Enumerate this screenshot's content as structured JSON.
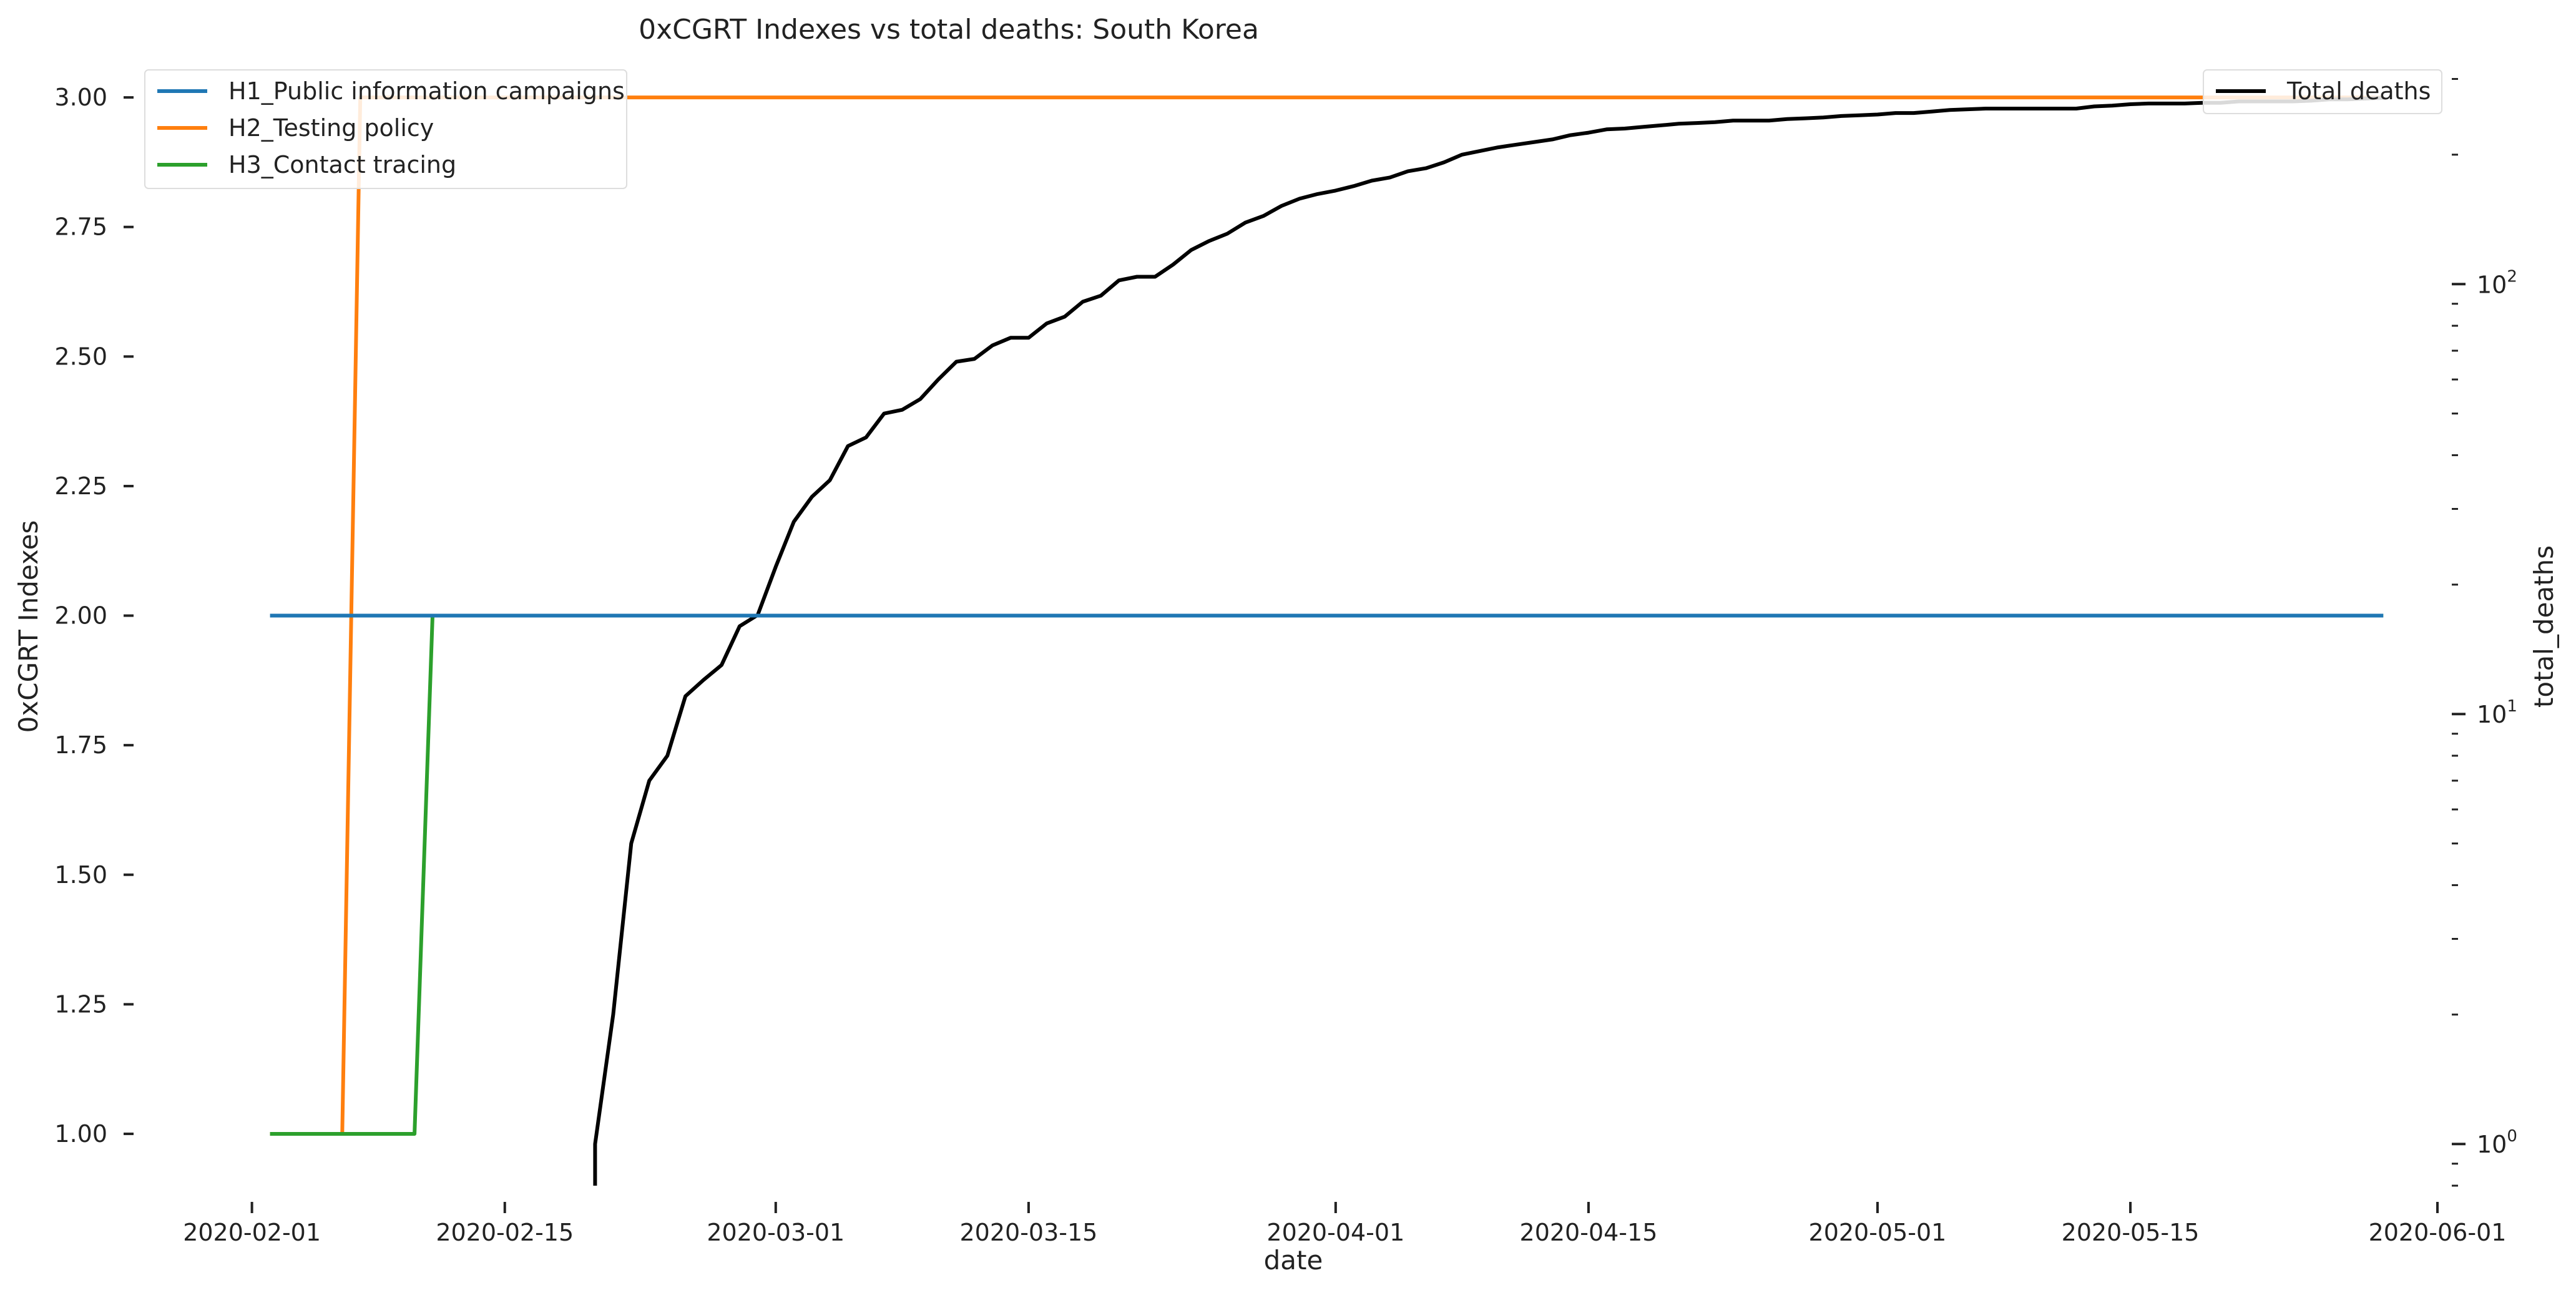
{
  "chart_data": {
    "type": "line",
    "title": "0xCGRT Indexes vs total deaths:  South Korea",
    "xlabel": "date",
    "ylabel_left": "0xCGRT Indexes",
    "ylabel_right": "total_deaths",
    "x_ticks": [
      "2020-02-01",
      "2020-02-15",
      "2020-03-01",
      "2020-03-15",
      "2020-04-01",
      "2020-04-15",
      "2020-05-01",
      "2020-05-15",
      "2020-06-01"
    ],
    "xlim": [
      "2020-01-26",
      "2020-06-01"
    ],
    "ylim_left": [
      0.9,
      3.07
    ],
    "y_ticks_left": [
      "1.00",
      "1.25",
      "1.50",
      "1.75",
      "2.00",
      "2.25",
      "2.50",
      "2.75",
      "3.00"
    ],
    "y_right_scale": "log",
    "ylim_right": [
      0.8,
      330
    ],
    "y_ticks_right": [
      {
        "base": "10",
        "exp": "0",
        "value": 1
      },
      {
        "base": "10",
        "exp": "1",
        "value": 10
      },
      {
        "base": "10",
        "exp": "2",
        "value": 100
      }
    ],
    "grid": false,
    "legend_left_placement": "top-left",
    "legend_right_placement": "top-right",
    "series": [
      {
        "name": "H1_Public information campaigns",
        "axis": "left",
        "color": "#1f77b4",
        "points": [
          [
            "2020-02-02",
            2
          ],
          [
            "2020-05-29",
            2
          ]
        ]
      },
      {
        "name": "H2_Testing policy",
        "axis": "left",
        "color": "#ff7f0e",
        "points": [
          [
            "2020-02-02",
            1
          ],
          [
            "2020-02-06",
            1
          ],
          [
            "2020-02-07",
            3
          ],
          [
            "2020-05-29",
            3
          ]
        ]
      },
      {
        "name": "H3_Contact tracing",
        "axis": "left",
        "color": "#2ca02c",
        "points": [
          [
            "2020-02-02",
            1
          ],
          [
            "2020-02-10",
            1
          ],
          [
            "2020-02-11",
            2
          ],
          [
            "2020-05-29",
            2
          ]
        ]
      },
      {
        "name": "Total deaths",
        "axis": "right",
        "color": "#000000",
        "points": [
          [
            "2020-02-20",
            0.8
          ],
          [
            "2020-02-20",
            1
          ],
          [
            "2020-02-21",
            2
          ],
          [
            "2020-02-22",
            5
          ],
          [
            "2020-02-23",
            7
          ],
          [
            "2020-02-24",
            8
          ],
          [
            "2020-02-25",
            11
          ],
          [
            "2020-02-26",
            12
          ],
          [
            "2020-02-27",
            13
          ],
          [
            "2020-02-28",
            16
          ],
          [
            "2020-02-29",
            17
          ],
          [
            "2020-03-01",
            22
          ],
          [
            "2020-03-02",
            28
          ],
          [
            "2020-03-03",
            32
          ],
          [
            "2020-03-04",
            35
          ],
          [
            "2020-03-05",
            42
          ],
          [
            "2020-03-06",
            44
          ],
          [
            "2020-03-07",
            50
          ],
          [
            "2020-03-08",
            51
          ],
          [
            "2020-03-09",
            54
          ],
          [
            "2020-03-10",
            60
          ],
          [
            "2020-03-11",
            66
          ],
          [
            "2020-03-12",
            67
          ],
          [
            "2020-03-13",
            72
          ],
          [
            "2020-03-14",
            75
          ],
          [
            "2020-03-15",
            75
          ],
          [
            "2020-03-16",
            81
          ],
          [
            "2020-03-17",
            84
          ],
          [
            "2020-03-18",
            91
          ],
          [
            "2020-03-19",
            94
          ],
          [
            "2020-03-20",
            102
          ],
          [
            "2020-03-21",
            104
          ],
          [
            "2020-03-22",
            104
          ],
          [
            "2020-03-23",
            111
          ],
          [
            "2020-03-24",
            120
          ],
          [
            "2020-03-25",
            126
          ],
          [
            "2020-03-26",
            131
          ],
          [
            "2020-03-27",
            139
          ],
          [
            "2020-03-28",
            144
          ],
          [
            "2020-03-29",
            152
          ],
          [
            "2020-03-30",
            158
          ],
          [
            "2020-03-31",
            162
          ],
          [
            "2020-04-01",
            165
          ],
          [
            "2020-04-02",
            169
          ],
          [
            "2020-04-03",
            174
          ],
          [
            "2020-04-04",
            177
          ],
          [
            "2020-04-05",
            183
          ],
          [
            "2020-04-06",
            186
          ],
          [
            "2020-04-07",
            192
          ],
          [
            "2020-04-08",
            200
          ],
          [
            "2020-04-09",
            204
          ],
          [
            "2020-04-10",
            208
          ],
          [
            "2020-04-11",
            211
          ],
          [
            "2020-04-12",
            214
          ],
          [
            "2020-04-13",
            217
          ],
          [
            "2020-04-14",
            222
          ],
          [
            "2020-04-15",
            225
          ],
          [
            "2020-04-16",
            229
          ],
          [
            "2020-04-17",
            230
          ],
          [
            "2020-04-18",
            232
          ],
          [
            "2020-04-19",
            234
          ],
          [
            "2020-04-20",
            236
          ],
          [
            "2020-04-21",
            237
          ],
          [
            "2020-04-22",
            238
          ],
          [
            "2020-04-23",
            240
          ],
          [
            "2020-04-24",
            240
          ],
          [
            "2020-04-25",
            240
          ],
          [
            "2020-04-26",
            242
          ],
          [
            "2020-04-27",
            243
          ],
          [
            "2020-04-28",
            244
          ],
          [
            "2020-04-29",
            246
          ],
          [
            "2020-04-30",
            247
          ],
          [
            "2020-05-01",
            248
          ],
          [
            "2020-05-02",
            250
          ],
          [
            "2020-05-03",
            250
          ],
          [
            "2020-05-04",
            252
          ],
          [
            "2020-05-05",
            254
          ],
          [
            "2020-05-06",
            255
          ],
          [
            "2020-05-07",
            256
          ],
          [
            "2020-05-08",
            256
          ],
          [
            "2020-05-09",
            256
          ],
          [
            "2020-05-10",
            256
          ],
          [
            "2020-05-11",
            256
          ],
          [
            "2020-05-12",
            256
          ],
          [
            "2020-05-13",
            259
          ],
          [
            "2020-05-14",
            260
          ],
          [
            "2020-05-15",
            262
          ],
          [
            "2020-05-16",
            263
          ],
          [
            "2020-05-17",
            263
          ],
          [
            "2020-05-18",
            263
          ],
          [
            "2020-05-19",
            264
          ],
          [
            "2020-05-20",
            264
          ],
          [
            "2020-05-21",
            266
          ],
          [
            "2020-05-22",
            266
          ],
          [
            "2020-05-23",
            266
          ],
          [
            "2020-05-24",
            266
          ],
          [
            "2020-05-25",
            267
          ],
          [
            "2020-05-26",
            269
          ],
          [
            "2020-05-27",
            269
          ],
          [
            "2020-05-28",
            270
          ],
          [
            "2020-05-29",
            271
          ]
        ]
      }
    ]
  }
}
